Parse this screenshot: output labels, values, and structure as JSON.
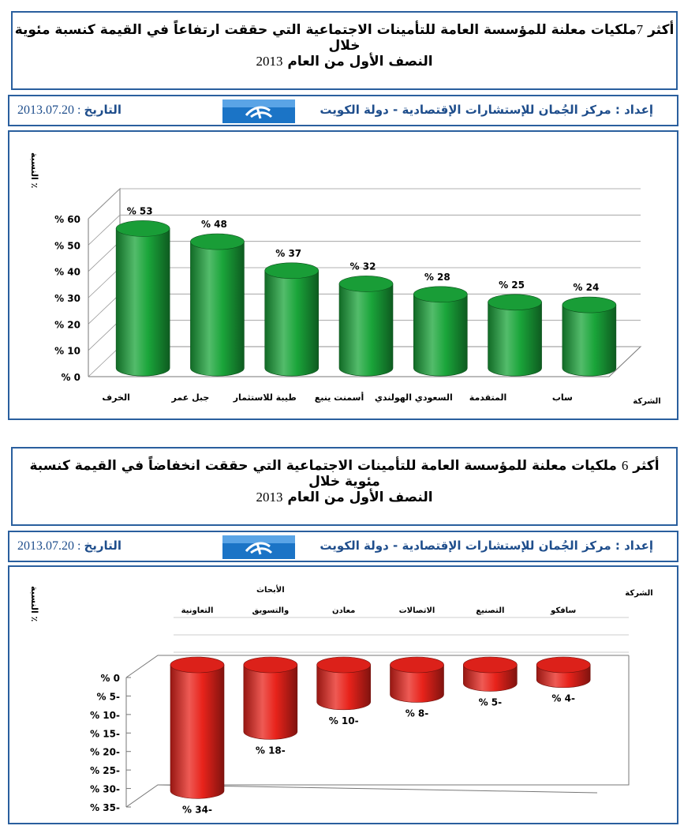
{
  "colors": {
    "frame": "#2a5f9e",
    "heading": "#1f4e8c",
    "up": "#1aa53a",
    "down": "#e8231b"
  },
  "header": {
    "prepared_label": "إعداد",
    "prepared_by": "مركز الجُمان للإستشارات الإقتصادية - دولة الكويت",
    "date_label": "التاريخ",
    "date_value": "2013.07.20",
    "logo_icon": "al-joman-logo"
  },
  "section1": {
    "title_prefix": "أكثر",
    "title_num": "7",
    "title_rest": "ملكيات معلنة للمؤسسة العامة للتأمينات الاجتماعية التي حققت ارتفاعاً في القيمة كنسبة مئوية خلال",
    "title_line2": "النصف الأول من العام",
    "title_year": "2013"
  },
  "section2": {
    "title_prefix": "أكثر",
    "title_num": "6",
    "title_rest": "ملكيات معلنة للمؤسسة العامة للتأمينات الاجتماعية التي حققت انخفاضاً في القيمة كنسبة مئوية خلال",
    "title_line2": "النصف الأول من العام",
    "title_year": "2013"
  },
  "chart_data": [
    {
      "type": "bar",
      "ylabel": "النسبة ٪",
      "xlabel": "الشركة",
      "ylim": [
        0,
        60
      ],
      "yticks": [
        "% 0",
        "% 10",
        "% 20",
        "% 30",
        "% 40",
        "% 50",
        "% 60"
      ],
      "categories": [
        "الخرف",
        "جبل عمر",
        "طيبة للاستثمار",
        "أسمنت ينبع",
        "السعودي الهولندي",
        "المتقدمة",
        "ساب"
      ],
      "values": [
        53,
        48,
        37,
        32,
        28,
        25,
        24
      ],
      "data_labels": [
        "% 53",
        "% 48",
        "% 37",
        "% 32",
        "% 28",
        "% 25",
        "% 24"
      ],
      "color": "#1aa53a"
    },
    {
      "type": "bar",
      "ylabel": "النسبة ٪",
      "xlabel": "الشركة",
      "ylim": [
        -35,
        0
      ],
      "yticks": [
        "% 0",
        "% 5-",
        "% 10-",
        "% 15-",
        "% 20-",
        "% 25-",
        "% 30-",
        "% 35-"
      ],
      "categories": [
        "التعاونية",
        "الأبحاث والتسويق",
        "معادن",
        "الاتصالات",
        "التصنيع",
        "سافكو"
      ],
      "values": [
        -34,
        -18,
        -10,
        -8,
        -5,
        -4
      ],
      "data_labels": [
        "% 34-",
        "% 18-",
        "% 10-",
        "% 8-",
        "% 5-",
        "% 4-"
      ],
      "color": "#e8231b"
    }
  ]
}
